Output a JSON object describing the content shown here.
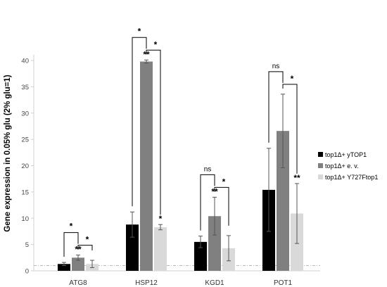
{
  "chart_data": {
    "type": "bar",
    "ylabel": "Gene expression in 0.05% glu (2% glu=1)",
    "ylim": [
      0,
      40
    ],
    "yticks": [
      0,
      5,
      10,
      15,
      20,
      25,
      30,
      35,
      40
    ],
    "categories": [
      "ATG8",
      "HSP12",
      "KGD1",
      "POT1"
    ],
    "series": [
      {
        "name": "top1Δ+ yTOP1",
        "color": "#000000",
        "values": [
          1.3,
          8.8,
          5.5,
          15.4
        ],
        "errors": [
          0.3,
          2.4,
          1.1,
          7.9
        ]
      },
      {
        "name": "top1Δ+ e. v.",
        "color": "#808080",
        "values": [
          2.5,
          39.8,
          10.4,
          26.6
        ],
        "errors": [
          0.5,
          0.3,
          3.6,
          7.0
        ]
      },
      {
        "name": "top1Δ+ Y727Ftop1",
        "color": "#d9d9d9",
        "values": [
          1.3,
          8.3,
          4.3,
          10.9
        ],
        "errors": [
          0.7,
          0.5,
          2.4,
          5.7
        ]
      }
    ],
    "reference_line": 1,
    "bar_labels": [
      [
        "",
        "**",
        ""
      ],
      [
        "",
        "**",
        "*"
      ],
      [
        "",
        "**",
        ""
      ],
      [
        "",
        "",
        "**"
      ]
    ],
    "brackets": [
      {
        "label": "*",
        "top_label": "*"
      },
      {
        "label": "*",
        "top_label": "*"
      },
      {
        "label": "ns",
        "top_label": "*"
      },
      {
        "label": "ns",
        "top_label": "*"
      }
    ],
    "legend_position": "right",
    "grid": false
  }
}
